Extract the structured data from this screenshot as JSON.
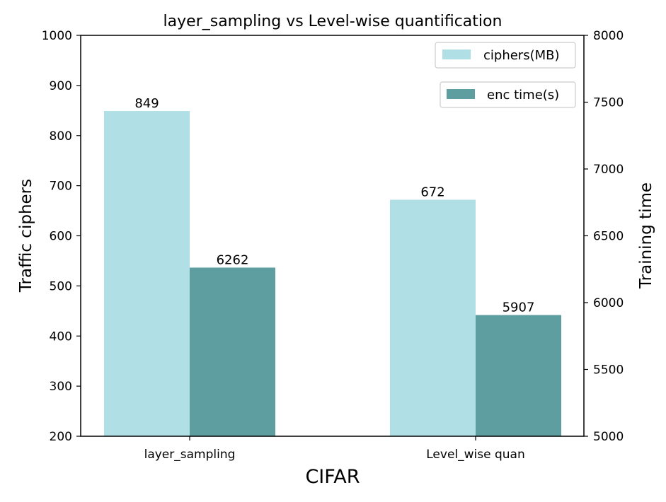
{
  "chart_data": {
    "type": "bar",
    "title": "layer_sampling vs Level-wise quantification",
    "xlabel": "CIFAR",
    "ylabel_left": "Traffic ciphers",
    "ylabel_right": "Training time",
    "categories": [
      "layer_sampling",
      "Level_wise quan"
    ],
    "ylim_left": [
      200,
      1000
    ],
    "ylim_right": [
      5000,
      8000
    ],
    "yticks_left": [
      200,
      300,
      400,
      500,
      600,
      700,
      800,
      900,
      1000
    ],
    "yticks_right": [
      5000,
      5500,
      6000,
      6500,
      7000,
      7500,
      8000
    ],
    "grid": false,
    "series": [
      {
        "name": "ciphers(MB)",
        "axis": "left",
        "color": "#b0dfe5",
        "values": [
          849,
          672
        ],
        "labels": [
          "849",
          "672"
        ]
      },
      {
        "name": "enc time(s)",
        "axis": "right",
        "color": "#5f9ea0",
        "values": [
          6262,
          5907
        ],
        "labels": [
          "6262",
          "5907"
        ]
      }
    ],
    "legend_placement": "top-right"
  }
}
